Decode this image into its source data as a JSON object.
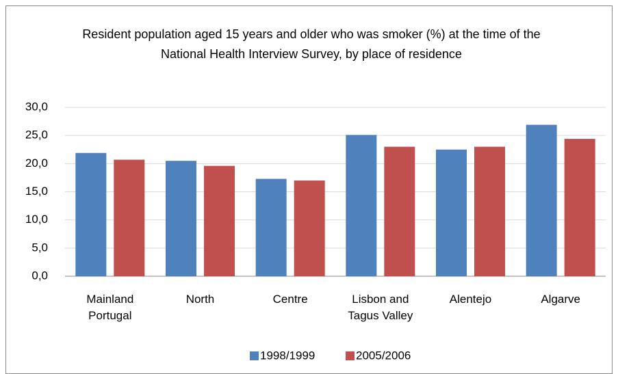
{
  "chart_data": {
    "type": "bar",
    "title": "Resident population aged 15 years and older who was smoker (%) at the time of the National Health Interview Survey, by place of residence",
    "categories": [
      "Mainland Portugal",
      "North",
      "Centre",
      "Lisbon and Tagus Valley",
      "Alentejo",
      "Algarve"
    ],
    "series": [
      {
        "name": "1998/1999",
        "color": "#4f81bd",
        "values": [
          21.9,
          20.5,
          17.3,
          25.1,
          22.5,
          26.9
        ]
      },
      {
        "name": "2005/2006",
        "color": "#c0504d",
        "values": [
          20.7,
          19.6,
          17.0,
          23.0,
          23.0,
          24.4
        ]
      }
    ],
    "ylim": [
      0,
      30
    ],
    "yticks": [
      {
        "value": 0,
        "label": "0,0"
      },
      {
        "value": 5,
        "label": "5,0"
      },
      {
        "value": 10,
        "label": "10,0"
      },
      {
        "value": 15,
        "label": "15,0"
      },
      {
        "value": 20,
        "label": "20,0"
      },
      {
        "value": 25,
        "label": "25,0"
      },
      {
        "value": 30,
        "label": "30,0"
      }
    ],
    "grid": true,
    "legend": "bottom"
  }
}
